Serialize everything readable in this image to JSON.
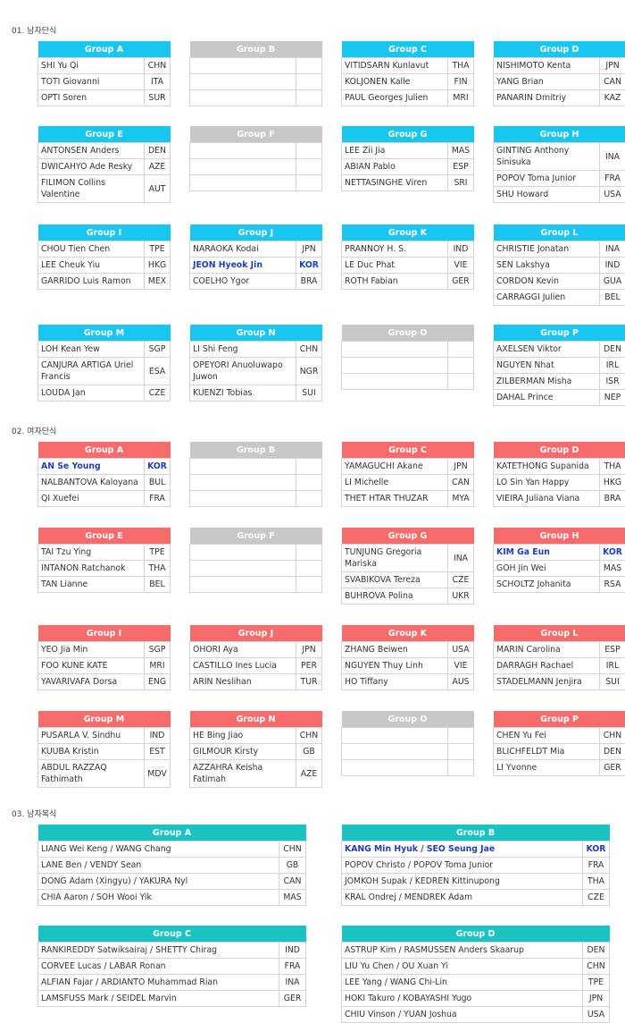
{
  "colors": {
    "mens_singles": "#19c6ef",
    "womens_singles": "#f86b6b",
    "mens_doubles": "#1ac2c2",
    "empty": "#c8c8c8",
    "korea_highlight": "#1f3fb5"
  },
  "sections": {
    "ms": {
      "title": "01. 남자단식",
      "groups": [
        {
          "name": "Group A",
          "rows": [
            [
              "SHI Yu Qi",
              "CHN"
            ],
            [
              "TOTI Giovanni",
              "ITA"
            ],
            [
              "OPTI Soren",
              "SUR"
            ]
          ]
        },
        {
          "name": "Group B",
          "rows": [
            [
              "",
              ""
            ],
            [
              "",
              ""
            ],
            [
              "",
              ""
            ]
          ]
        },
        {
          "name": "Group C",
          "rows": [
            [
              "VITIDSARN Kunlavut",
              "THA"
            ],
            [
              "KOLJONEN Kalle",
              "FIN"
            ],
            [
              "PAUL Georges Julien",
              "MRI"
            ]
          ]
        },
        {
          "name": "Group D",
          "rows": [
            [
              "NISHIMOTO Kenta",
              "JPN"
            ],
            [
              "YANG Brian",
              "CAN"
            ],
            [
              "PANARIN Dmitriy",
              "KAZ"
            ]
          ]
        },
        {
          "name": "Group E",
          "rows": [
            [
              "ANTONSEN Anders",
              "DEN"
            ],
            [
              "DWICAHYO Ade Resky",
              "AZE"
            ],
            [
              "FILIMON Collins Valentine",
              "AUT"
            ]
          ]
        },
        {
          "name": "Group F",
          "rows": [
            [
              "",
              ""
            ],
            [
              "",
              ""
            ],
            [
              "",
              ""
            ]
          ]
        },
        {
          "name": "Group G",
          "rows": [
            [
              "LEE Zii Jia",
              "MAS"
            ],
            [
              "ABIAN Pablo",
              "ESP"
            ],
            [
              "NETTASINGHE Viren",
              "SRI"
            ]
          ]
        },
        {
          "name": "Group H",
          "rows": [
            [
              "GINTING Anthony Sinisuka",
              "INA"
            ],
            [
              "POPOV Toma Junior",
              "FRA"
            ],
            [
              "SHU Howard",
              "USA"
            ]
          ]
        },
        {
          "name": "Group I",
          "rows": [
            [
              "CHOU Tien Chen",
              "TPE"
            ],
            [
              "LEE Cheuk Yiu",
              "HKG"
            ],
            [
              "GARRIDO Luis Ramon",
              "MEX"
            ]
          ]
        },
        {
          "name": "Group J",
          "rows": [
            [
              "NARAOKA Kodai",
              "JPN"
            ],
            [
              "JEON Hyeok Jin",
              "KOR"
            ],
            [
              "COELHO Ygor",
              "BRA"
            ]
          ]
        },
        {
          "name": "Group K",
          "rows": [
            [
              "PRANNOY H. S.",
              "IND"
            ],
            [
              "LE Duc Phat",
              "VIE"
            ],
            [
              "ROTH Fabian",
              "GER"
            ]
          ]
        },
        {
          "name": "Group L",
          "rows": [
            [
              "CHRISTIE Jonatan",
              "INA"
            ],
            [
              "SEN Lakshya",
              "IND"
            ],
            [
              "CORDON Kevin",
              "GUA"
            ],
            [
              "CARRAGGI Julien",
              "BEL"
            ]
          ]
        },
        {
          "name": "Group M",
          "rows": [
            [
              "LOH Kean Yew",
              "SGP"
            ],
            [
              "CANJURA ARTIGA Uriel Francis",
              "ESA"
            ],
            [
              "LOUDA Jan",
              "CZE"
            ]
          ]
        },
        {
          "name": "Group N",
          "rows": [
            [
              "LI Shi Feng",
              "CHN"
            ],
            [
              "OPEYORI Anuoluwapo Juwon",
              "NGR"
            ],
            [
              "KUENZI Tobias",
              "SUI"
            ]
          ]
        },
        {
          "name": "Group O",
          "rows": [
            [
              "",
              ""
            ],
            [
              "",
              ""
            ],
            [
              "",
              ""
            ]
          ]
        },
        {
          "name": "Group P",
          "rows": [
            [
              "AXELSEN Viktor",
              "DEN"
            ],
            [
              "NGUYEN Nhat",
              "IRL"
            ],
            [
              "ZILBERMAN Misha",
              "ISR"
            ],
            [
              "DAHAL Prince",
              "NEP"
            ]
          ]
        }
      ]
    },
    "ws": {
      "title": "02. 여자단식",
      "groups": [
        {
          "name": "Group A",
          "rows": [
            [
              "AN Se Young",
              "KOR"
            ],
            [
              "NALBANTOVA Kaloyana",
              "BUL"
            ],
            [
              "QI Xuefei",
              "FRA"
            ]
          ]
        },
        {
          "name": "Group B",
          "rows": [
            [
              "",
              ""
            ],
            [
              "",
              ""
            ],
            [
              "",
              ""
            ]
          ]
        },
        {
          "name": "Group C",
          "rows": [
            [
              "YAMAGUCHI Akane",
              "JPN"
            ],
            [
              "LI Michelle",
              "CAN"
            ],
            [
              "THET HTAR THUZAR",
              "MYA"
            ]
          ]
        },
        {
          "name": "Group D",
          "rows": [
            [
              "KATETHONG Supanida",
              "THA"
            ],
            [
              "LO Sin Yan Happy",
              "HKG"
            ],
            [
              "VIEIRA Juliana Viana",
              "BRA"
            ]
          ]
        },
        {
          "name": "Group E",
          "rows": [
            [
              "TAI Tzu Ying",
              "TPE"
            ],
            [
              "INTANON Ratchanok",
              "THA"
            ],
            [
              "TAN Lianne",
              "BEL"
            ]
          ]
        },
        {
          "name": "Group F",
          "rows": [
            [
              "",
              ""
            ],
            [
              "",
              ""
            ],
            [
              "",
              ""
            ]
          ]
        },
        {
          "name": "Group G",
          "rows": [
            [
              "TUNJUNG Gregoria Mariska",
              "INA"
            ],
            [
              "SVABIKOVA Tereza",
              "CZE"
            ],
            [
              "BUHROVA Polina",
              "UKR"
            ]
          ]
        },
        {
          "name": "Group H",
          "rows": [
            [
              "KIM Ga Eun",
              "KOR"
            ],
            [
              "GOH Jin Wei",
              "MAS"
            ],
            [
              "SCHOLTZ Johanita",
              "RSA"
            ]
          ]
        },
        {
          "name": "Group I",
          "rows": [
            [
              "YEO Jia Min",
              "SGP"
            ],
            [
              "FOO KUNE KATE",
              "MRI"
            ],
            [
              "YAVARIVAFA Dorsa",
              "ENG"
            ]
          ]
        },
        {
          "name": "Group J",
          "rows": [
            [
              "OHORI Aya",
              "JPN"
            ],
            [
              "CASTILLO Ines Lucia",
              "PER"
            ],
            [
              "ARIN Neslihan",
              "TUR"
            ]
          ]
        },
        {
          "name": "Group K",
          "rows": [
            [
              "ZHANG Beiwen",
              "USA"
            ],
            [
              "NGUYEN Thuy Linh",
              "VIE"
            ],
            [
              "HO Tiffany",
              "AUS"
            ]
          ]
        },
        {
          "name": "Group L",
          "rows": [
            [
              "MARIN Carolina",
              "ESP"
            ],
            [
              "DARRAGH Rachael",
              "IRL"
            ],
            [
              "STADELMANN Jenjira",
              "SUI"
            ]
          ]
        },
        {
          "name": "Group M",
          "rows": [
            [
              "PUSARLA V. Sindhu",
              "IND"
            ],
            [
              "KUUBA Kristin",
              "EST"
            ],
            [
              "ABDUL RAZZAQ Fathimath",
              "MDV"
            ]
          ]
        },
        {
          "name": "Group N",
          "rows": [
            [
              "HE Bing Jiao",
              "CHN"
            ],
            [
              "GILMOUR Kirsty",
              "GB"
            ],
            [
              "AZZAHRA Keisha Fatimah",
              "AZE"
            ]
          ]
        },
        {
          "name": "Group O",
          "rows": [
            [
              "",
              ""
            ],
            [
              "",
              ""
            ],
            [
              "",
              ""
            ]
          ]
        },
        {
          "name": "Group P",
          "rows": [
            [
              "CHEN Yu Fei",
              "CHN"
            ],
            [
              "BLICHFELDT Mia",
              "DEN"
            ],
            [
              "LI Yvonne",
              "GER"
            ]
          ]
        }
      ]
    },
    "md": {
      "title": "03. 남자복식",
      "groups": [
        {
          "name": "Group A",
          "rows": [
            [
              "LIANG Wei Keng / WANG Chang",
              "CHN"
            ],
            [
              "LANE Ben / VENDY Sean",
              "GB"
            ],
            [
              "DONG Adam (Xingyu) / YAKURA Nyl",
              "CAN"
            ],
            [
              "CHIA Aaron / SOH Wooi Yik",
              "MAS"
            ]
          ]
        },
        {
          "name": "Group B",
          "rows": [
            [
              "KANG Min Hyuk / SEO Seung Jae",
              "KOR"
            ],
            [
              "POPOV Christo / POPOV Toma Junior",
              "FRA"
            ],
            [
              "JOMKOH Supak / KEDREN Kittinupong",
              "THA"
            ],
            [
              "KRAL Ondrej / MENDREK Adam",
              "CZE"
            ]
          ]
        },
        {
          "name": "Group C",
          "rows": [
            [
              "RANKIREDDY Satwiksairaj / SHETTY Chirag",
              "IND"
            ],
            [
              "CORVEE Lucas / LABAR Ronan",
              "FRA"
            ],
            [
              "ALFIAN Fajar / ARDIANTO Muhammad Rian",
              "INA"
            ],
            [
              "LAMSFUSS Mark / SEIDEL Marvin",
              "GER"
            ]
          ]
        },
        {
          "name": "Group D",
          "rows": [
            [
              "ASTRUP Kim / RASMUSSEN Anders Skaarup",
              "DEN"
            ],
            [
              "LIU Yu Chen / OU Xuan Yi",
              "CHN"
            ],
            [
              "LEE Yang / WANG Chi-Lin",
              "TPE"
            ],
            [
              "HOKI Takuro / KOBAYASHI Yugo",
              "JPN"
            ],
            [
              "CHIU Vinson / YUAN Joshua",
              "USA"
            ]
          ]
        }
      ]
    }
  }
}
